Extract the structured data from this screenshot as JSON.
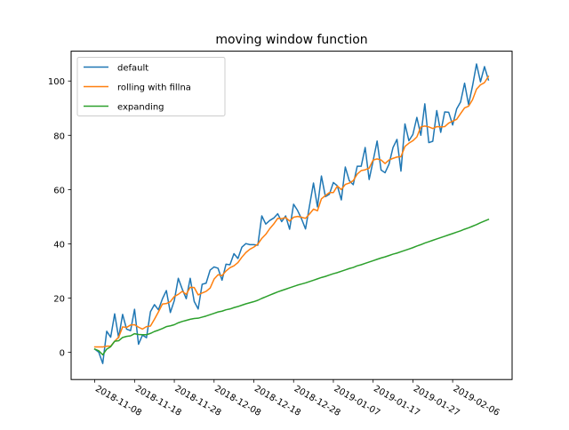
{
  "chart_data": {
    "type": "line",
    "title": "moving window function",
    "xlabel": "",
    "ylabel": "",
    "start_date": "2018-11-08",
    "n_days": 100,
    "xlim_days": [
      -5.95,
      104.95
    ],
    "ylim": [
      -10,
      111
    ],
    "x_ticks": [
      {
        "day": 0,
        "label": "2018-11-08"
      },
      {
        "day": 10,
        "label": "2018-11-18"
      },
      {
        "day": 20,
        "label": "2018-11-28"
      },
      {
        "day": 30,
        "label": "2018-12-08"
      },
      {
        "day": 40,
        "label": "2018-12-18"
      },
      {
        "day": 50,
        "label": "2018-12-28"
      },
      {
        "day": 60,
        "label": "2019-01-07"
      },
      {
        "day": 70,
        "label": "2019-01-17"
      },
      {
        "day": 80,
        "label": "2019-01-27"
      },
      {
        "day": 90,
        "label": "2019-02-06"
      }
    ],
    "y_ticks": [
      0,
      20,
      40,
      60,
      80,
      100
    ],
    "legend_position": "top-left",
    "series": [
      {
        "name": "default",
        "color": "#1f77b4",
        "values": [
          1.2,
          0.1,
          -4.1,
          7.8,
          5.6,
          14.2,
          5.4,
          14.0,
          8.6,
          8.0,
          15.9,
          3.0,
          6.4,
          5.4,
          15.0,
          17.6,
          15.7,
          19.7,
          22.8,
          14.7,
          19.1,
          27.3,
          23.3,
          19.8,
          27.3,
          18.8,
          16.0,
          25.1,
          25.5,
          30.3,
          31.5,
          31.0,
          26.6,
          32.5,
          32.3,
          36.4,
          34.6,
          38.8,
          40.1,
          39.7,
          39.7,
          39.5,
          50.3,
          47.3,
          48.6,
          49.5,
          51.1,
          48.2,
          50.3,
          45.4,
          54.6,
          52.3,
          49.2,
          45.5,
          54.0,
          62.4,
          53.6,
          65.0,
          57.4,
          58.3,
          62.6,
          61.4,
          56.2,
          68.3,
          63.3,
          61.8,
          68.6,
          68.6,
          75.5,
          63.7,
          70.6,
          77.9,
          67.2,
          66.2,
          69.4,
          75.5,
          78.5,
          66.8,
          84.2,
          78.0,
          80.3,
          86.6,
          80.0,
          91.6,
          77.3,
          77.8,
          89.1,
          81.1,
          88.6,
          88.5,
          83.8,
          89.7,
          92.3,
          99.2,
          91.3,
          98.2,
          106.3,
          99.7,
          105.3,
          100.4
        ]
      },
      {
        "name": "rolling with fillna",
        "color": "#ff7f0e",
        "values": [
          2.0,
          2.0,
          2.0,
          2.3,
          2.3,
          4.1,
          5.6,
          9.4,
          9.2,
          10.1,
          10.2,
          9.3,
          8.6,
          9.5,
          9.7,
          12.2,
          14.9,
          17.8,
          18.0,
          18.7,
          20.6,
          21.4,
          22.5,
          21.4,
          24.0,
          23.9,
          21.2,
          21.9,
          22.5,
          23.7,
          27.0,
          28.6,
          28.3,
          30.0,
          31.2,
          31.9,
          33.1,
          35.1,
          36.8,
          38.0,
          38.8,
          39.9,
          42.0,
          43.5,
          45.6,
          47.3,
          49.4,
          49.3,
          49.7,
          48.4,
          49.8,
          50.1,
          49.8,
          49.4,
          51.0,
          52.8,
          52.2,
          56.6,
          57.8,
          58.9,
          58.9,
          61.3,
          60.0,
          61.9,
          62.4,
          63.3,
          65.7,
          67.0,
          67.3,
          67.9,
          70.9,
          71.3,
          70.9,
          69.6,
          70.9,
          71.5,
          72.0,
          72.1,
          75.9,
          77.1,
          78.0,
          79.4,
          83.1,
          83.4,
          83.1,
          82.5,
          83.2,
          83.1,
          83.2,
          84.5,
          85.2,
          85.9,
          88.0,
          90.1,
          90.7,
          93.1,
          97.0,
          98.6,
          99.4,
          101.7
        ]
      },
      {
        "name": "expanding",
        "color": "#2ca02c",
        "values": [
          1.2,
          0.6,
          -0.9,
          1.2,
          2.1,
          4.1,
          4.3,
          5.5,
          5.9,
          6.1,
          6.9,
          6.6,
          6.5,
          6.5,
          7.0,
          7.7,
          8.2,
          8.8,
          9.5,
          9.8,
          10.2,
          10.9,
          11.4,
          11.8,
          12.2,
          12.5,
          12.6,
          13.0,
          13.4,
          13.9,
          14.4,
          14.9,
          15.2,
          15.7,
          16.0,
          16.5,
          16.9,
          17.4,
          17.9,
          18.3,
          18.7,
          19.2,
          19.9,
          20.5,
          21.1,
          21.7,
          22.3,
          22.8,
          23.3,
          23.8,
          24.3,
          24.8,
          25.2,
          25.6,
          26.1,
          26.6,
          27.1,
          27.6,
          28.0,
          28.5,
          29.0,
          29.4,
          29.9,
          30.4,
          30.9,
          31.3,
          31.9,
          32.3,
          32.8,
          33.3,
          33.8,
          34.3,
          34.8,
          35.2,
          35.7,
          36.2,
          36.6,
          37.1,
          37.6,
          38.1,
          38.6,
          39.2,
          39.7,
          40.3,
          40.8,
          41.3,
          41.8,
          42.3,
          42.8,
          43.3,
          43.8,
          44.3,
          44.8,
          45.4,
          45.9,
          46.5,
          47.1,
          47.8,
          48.4,
          49.0
        ]
      }
    ]
  }
}
